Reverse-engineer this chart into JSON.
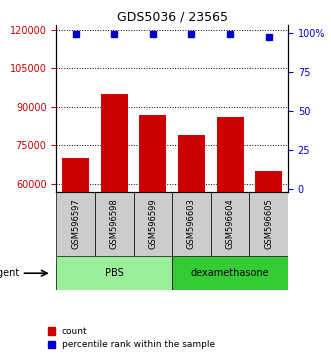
{
  "title": "GDS5036 / 23565",
  "samples": [
    "GSM596597",
    "GSM596598",
    "GSM596599",
    "GSM596603",
    "GSM596604",
    "GSM596605"
  ],
  "counts": [
    70000,
    95000,
    87000,
    79000,
    86000,
    65000
  ],
  "percentiles": [
    99,
    99,
    99,
    99,
    99,
    97
  ],
  "ylim_left": [
    57000,
    122000
  ],
  "ylim_right": [
    -2,
    105
  ],
  "yticks_left": [
    60000,
    75000,
    90000,
    105000,
    120000
  ],
  "yticks_right": [
    0,
    25,
    50,
    75,
    100
  ],
  "bar_color": "#cc0000",
  "dot_color": "#0000cc",
  "groups": [
    {
      "label": "PBS",
      "indices": [
        0,
        1,
        2
      ],
      "color": "#99ee99"
    },
    {
      "label": "dexamethasone",
      "indices": [
        3,
        4,
        5
      ],
      "color": "#33cc33"
    }
  ],
  "agent_label": "agent",
  "left_tick_color": "#cc0000",
  "right_tick_color": "#0000cc",
  "sample_box_color": "#cccccc",
  "legend_count_label": "count",
  "legend_percentile_label": "percentile rank within the sample"
}
